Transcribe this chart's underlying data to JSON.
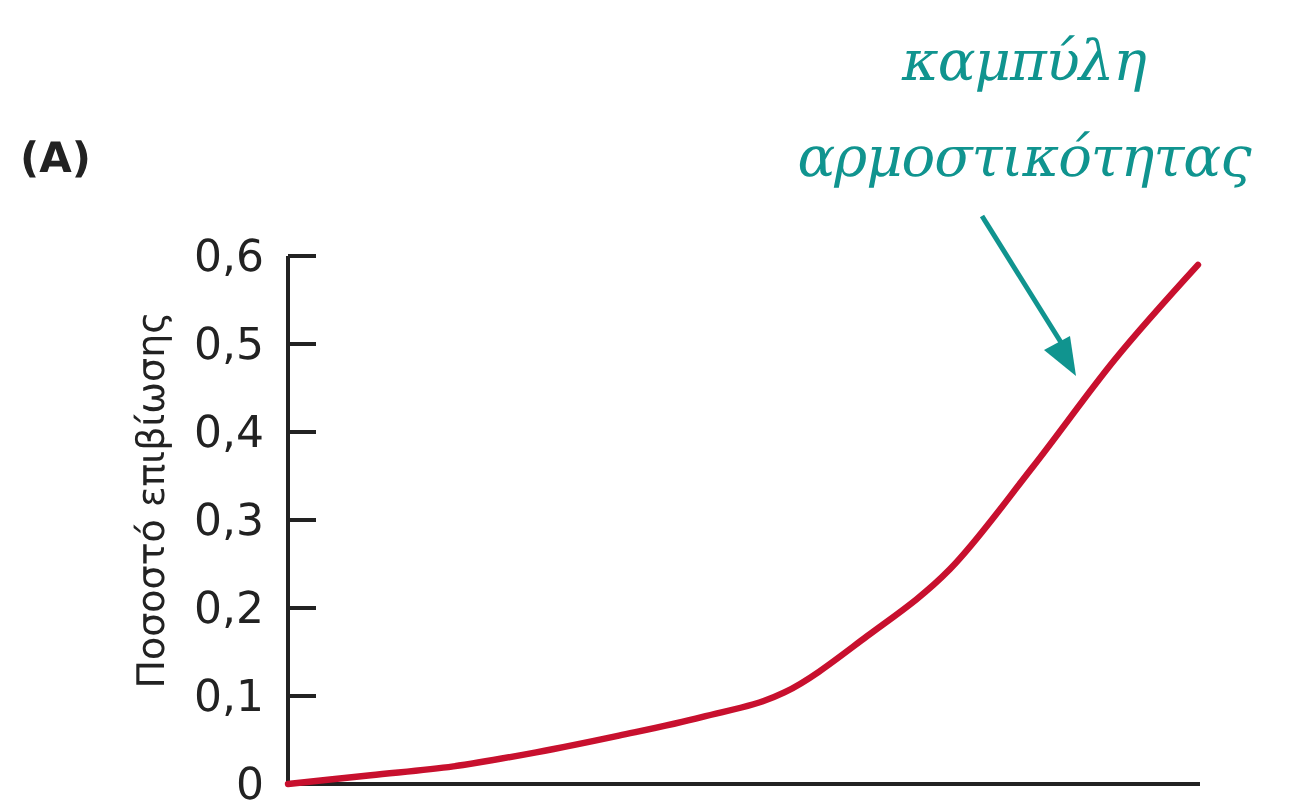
{
  "chart_data": {
    "type": "line",
    "title": "(A)",
    "ylabel": "Ποσοστό επιβίωσης",
    "annotations": [
      "καμπύλη αρμοστικότητας"
    ],
    "categories": [
      null,
      null,
      null,
      null,
      null,
      null,
      null,
      null,
      null,
      null,
      null,
      null
    ],
    "series": [
      {
        "color": "#c8102e",
        "values": [
          0,
          0.01,
          0.02,
          0.036,
          0.055,
          0.076,
          0.104,
          0.168,
          0.244,
          0.36,
          0.483,
          0.59
        ]
      }
    ],
    "ylim": [
      0,
      0.6
    ],
    "yticks": [
      0,
      {
        "value": 0.1,
        "label": "0,1"
      },
      {
        "value": 0.2,
        "label": "0,2"
      },
      {
        "value": 0.3,
        "label": "0,3"
      },
      {
        "value": 0.4,
        "label": "0,4"
      },
      {
        "value": 0.5,
        "label": "0,5"
      },
      {
        "value": 0.6,
        "label": "0,6"
      }
    ],
    "grid": false,
    "marker": "none",
    "line_style": "solid"
  }
}
